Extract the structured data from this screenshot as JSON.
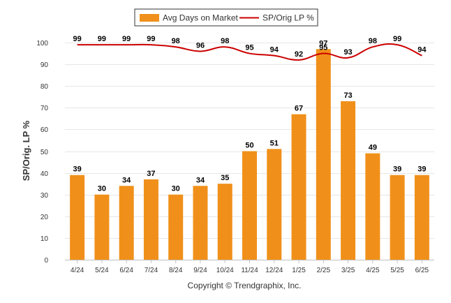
{
  "chart_data": {
    "type": "bar",
    "categories": [
      "4/24",
      "5/24",
      "6/24",
      "7/24",
      "8/24",
      "9/24",
      "10/24",
      "11/24",
      "12/24",
      "1/25",
      "2/25",
      "3/25",
      "4/25",
      "5/25",
      "6/25"
    ],
    "series": [
      {
        "name": "Avg Days on Market",
        "type": "bar",
        "color": "#f0901a",
        "values": [
          39,
          30,
          34,
          37,
          30,
          34,
          35,
          50,
          51,
          67,
          97,
          73,
          49,
          39,
          39
        ]
      },
      {
        "name": "SP/Orig LP %",
        "type": "line",
        "color": "#cc0000",
        "values": [
          99,
          99,
          99,
          99,
          98,
          96,
          98,
          95,
          94,
          92,
          95,
          93,
          98,
          99,
          94
        ]
      }
    ],
    "ylabel": "SP/Orig. LP %",
    "xlabel": "",
    "ylim": [
      0,
      100
    ],
    "yticks": [
      0,
      10,
      20,
      30,
      40,
      50,
      60,
      70,
      80,
      90,
      100
    ],
    "grid": true,
    "legend": "top-center"
  },
  "footer": {
    "copyright": "Copyright © Trendgraphix, Inc."
  }
}
